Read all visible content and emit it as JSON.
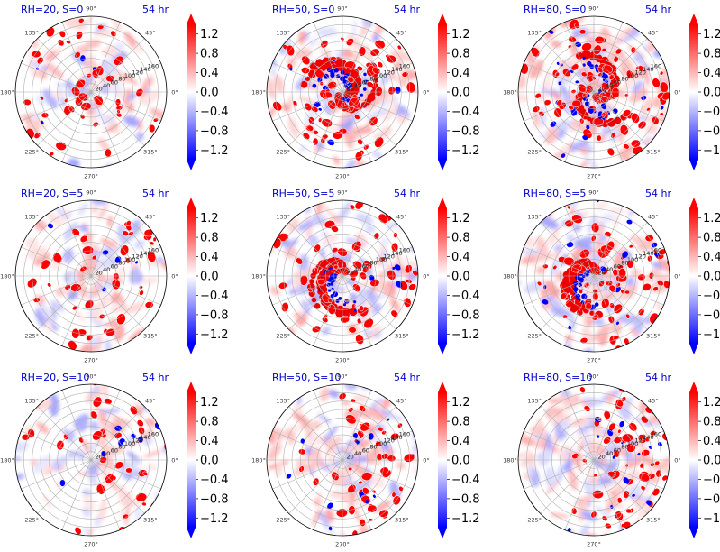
{
  "chart_data": {
    "type": "polar-contour-grid",
    "panels": [
      {
        "title": "RH=20, S=0",
        "time": "54 hr",
        "rh": 20,
        "s": 0,
        "row": 0,
        "col": 0,
        "seed": 11
      },
      {
        "title": "RH=50, S=0",
        "time": "54 hr",
        "rh": 50,
        "s": 0,
        "row": 0,
        "col": 1,
        "seed": 23
      },
      {
        "title": "RH=80, S=0",
        "time": "54 hr",
        "rh": 80,
        "s": 0,
        "row": 0,
        "col": 2,
        "seed": 37
      },
      {
        "title": "RH=20, S=5",
        "time": "54 hr",
        "rh": 20,
        "s": 5,
        "row": 1,
        "col": 0,
        "seed": 41
      },
      {
        "title": "RH=50, S=5",
        "time": "54 hr",
        "rh": 50,
        "s": 5,
        "row": 1,
        "col": 1,
        "seed": 53
      },
      {
        "title": "RH=80, S=5",
        "time": "54 hr",
        "rh": 80,
        "s": 5,
        "row": 1,
        "col": 2,
        "seed": 67
      },
      {
        "title": "RH=20, S=10",
        "time": "54 hr",
        "rh": 20,
        "s": 10,
        "row": 2,
        "col": 0,
        "seed": 71
      },
      {
        "title": "RH=50, S=10",
        "time": "54 hr",
        "rh": 50,
        "s": 10,
        "row": 2,
        "col": 1,
        "seed": 83
      },
      {
        "title": "RH=80, S=10",
        "time": "54 hr",
        "rh": 80,
        "s": 10,
        "row": 2,
        "col": 2,
        "seed": 97
      }
    ],
    "angular_ticks": [
      "0°",
      "45°",
      "90°",
      "135°",
      "180°",
      "225°",
      "270°",
      "315°"
    ],
    "radial_ticks": [
      20,
      40,
      60,
      80,
      100,
      120,
      140,
      160
    ],
    "radial_max": 180,
    "colorbar": {
      "cmap": "bwr",
      "ticks": [
        "1.2",
        "0.8",
        "0.4",
        "0.0",
        "−0.4",
        "−0.8",
        "−1.2"
      ],
      "tick_values": [
        1.2,
        0.8,
        0.4,
        0.0,
        -0.4,
        -0.8,
        -1.2
      ],
      "vmin": -1.4,
      "vmax": 1.4,
      "extend": "both"
    },
    "colors": {
      "positive": "#ff0000",
      "negative": "#0000ff",
      "zero": "#ffffff",
      "title": "#0000cc"
    }
  }
}
